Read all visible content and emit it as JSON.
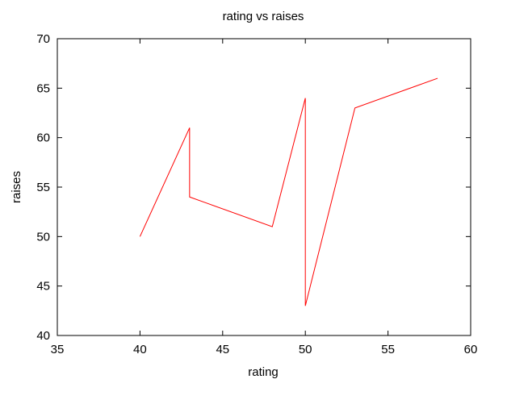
{
  "chart_data": {
    "type": "line",
    "title": "rating vs raises",
    "xlabel": "rating",
    "ylabel": "raises",
    "xlim": [
      35,
      60
    ],
    "ylim": [
      40,
      70
    ],
    "xticks": [
      35,
      40,
      45,
      50,
      55,
      60
    ],
    "yticks": [
      40,
      45,
      50,
      55,
      60,
      65,
      70
    ],
    "grid": false,
    "series": [
      {
        "color": "#ff0000",
        "points": [
          {
            "x": 40,
            "y": 50
          },
          {
            "x": 43,
            "y": 61
          },
          {
            "x": 43,
            "y": 54
          },
          {
            "x": 48,
            "y": 51
          },
          {
            "x": 50,
            "y": 64
          },
          {
            "x": 50,
            "y": 43
          },
          {
            "x": 53,
            "y": 63
          },
          {
            "x": 58,
            "y": 66
          }
        ]
      }
    ]
  }
}
